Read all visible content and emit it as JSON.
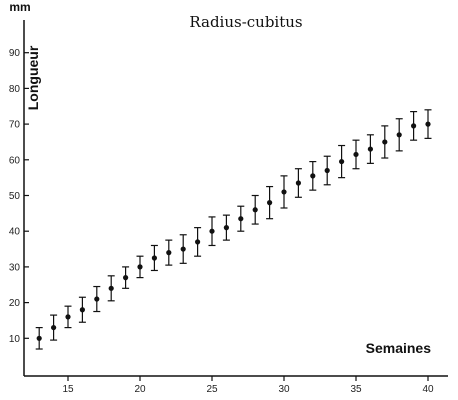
{
  "chart_data": {
    "type": "scatter",
    "title": "Radius-cubitus",
    "ylabel": "Longueur",
    "yunit": "mm",
    "xlabel": "Semaines",
    "xlim": [
      12,
      40
    ],
    "ylim": [
      0,
      95
    ],
    "xticks": [
      15,
      20,
      25,
      30,
      35,
      40
    ],
    "yticks": [
      10,
      20,
      30,
      40,
      50,
      60,
      70,
      80,
      90
    ],
    "grid": false,
    "error_bars": true,
    "series": [
      {
        "x": [
          13,
          14,
          15,
          16,
          17,
          18,
          19,
          20,
          21,
          22,
          23,
          24,
          25,
          26,
          27,
          28,
          29,
          30,
          31,
          32,
          33,
          34,
          35,
          36,
          37,
          38,
          39,
          40
        ],
        "y": [
          10,
          13,
          16,
          18,
          21,
          24,
          27,
          30,
          32.5,
          34,
          35,
          37,
          40,
          41,
          43.5,
          46,
          48,
          51,
          53.5,
          55.5,
          57,
          59.5,
          61.5,
          63,
          65,
          67,
          69.5,
          70
        ],
        "err": [
          3,
          3.5,
          3,
          3.5,
          3.5,
          3.5,
          3,
          3,
          3.5,
          3.5,
          4,
          4,
          4,
          3.5,
          3.5,
          4,
          4.5,
          4.5,
          4,
          4,
          4,
          4.5,
          4,
          4,
          4.5,
          4.5,
          4,
          4
        ]
      }
    ]
  }
}
